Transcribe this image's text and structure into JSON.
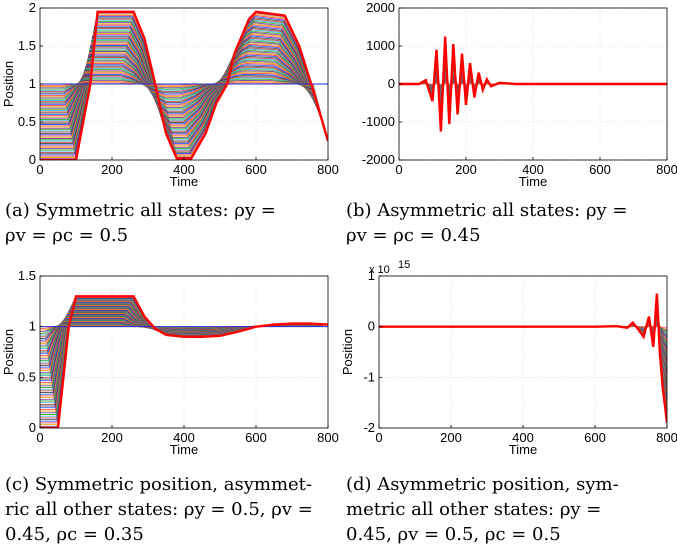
{
  "chart_data": [
    {
      "type": "line",
      "panel": "a",
      "caption_lines": [
        "(a) Symmetric all states: ρy =",
        "ρv = ρc = 0.5"
      ],
      "xlabel": "Time",
      "ylabel": "Position",
      "xlim": [
        0,
        800
      ],
      "ylim": [
        0,
        2
      ],
      "xticks": [
        "0",
        "200",
        "400",
        "600",
        "800"
      ],
      "yticks": [
        "0",
        "0.5",
        "1",
        "1.5",
        "2"
      ],
      "grid": true,
      "series": [
        {
          "color": "#ff0000",
          "x": [
            0,
            100,
            140,
            160,
            260,
            290,
            320,
            350,
            380,
            420,
            460,
            490,
            520,
            540,
            580,
            600,
            680,
            720,
            760,
            800
          ],
          "y": [
            0,
            0,
            1,
            1.95,
            1.95,
            1.6,
            1,
            0.35,
            0.02,
            0.02,
            0.35,
            0.75,
            1,
            1.4,
            1.85,
            1.95,
            1.9,
            1.5,
            0.9,
            0.25
          ]
        }
      ]
    },
    {
      "type": "line",
      "panel": "b",
      "caption_lines": [
        "(b) Asymmetric all states: ρy =",
        "ρv = ρc = 0.45"
      ],
      "xlabel": "Time",
      "ylabel": "",
      "xlim": [
        0,
        800
      ],
      "ylim": [
        -2000,
        2000
      ],
      "xticks": [
        "0",
        "200",
        "400",
        "600",
        "800"
      ],
      "yticks": [
        "-2000",
        "-1000",
        "0",
        "1000",
        "2000"
      ],
      "grid": true,
      "series": [
        {
          "color": "#ff0000",
          "x": [
            0,
            60,
            80,
            100,
            112,
            125,
            138,
            150,
            162,
            175,
            188,
            200,
            212,
            225,
            238,
            250,
            262,
            275,
            300,
            350,
            400,
            800
          ],
          "y": [
            0,
            0,
            100,
            -450,
            900,
            -1250,
            1250,
            -1050,
            1050,
            -800,
            800,
            -550,
            550,
            -350,
            300,
            -150,
            120,
            -60,
            30,
            0,
            0,
            0
          ]
        }
      ]
    },
    {
      "type": "line",
      "panel": "c",
      "caption_lines": [
        "(c) Symmetric position, asymmet-",
        "ric all other states: ρy = 0.5, ρv =",
        "0.45, ρc = 0.35"
      ],
      "xlabel": "Time",
      "ylabel": "Position",
      "xlim": [
        0,
        800
      ],
      "ylim": [
        0,
        1.5
      ],
      "xticks": [
        "0",
        "200",
        "400",
        "600",
        "800"
      ],
      "yticks": [
        "0",
        "0.5",
        "1",
        "1.5"
      ],
      "grid": true,
      "series": [
        {
          "color": "#ff0000",
          "x": [
            0,
            50,
            80,
            100,
            260,
            290,
            320,
            350,
            400,
            450,
            500,
            550,
            600,
            650,
            700,
            750,
            800
          ],
          "y": [
            0,
            0,
            1,
            1.3,
            1.3,
            1.1,
            0.98,
            0.92,
            0.9,
            0.9,
            0.91,
            0.95,
            1.0,
            1.02,
            1.03,
            1.03,
            1.02
          ]
        }
      ]
    },
    {
      "type": "line",
      "panel": "d",
      "caption_lines": [
        "(d) Asymmetric position, sym-",
        "metric all other states: ρy =",
        "0.45, ρv = 0.5, ρc = 0.5"
      ],
      "xlabel": "Time",
      "ylabel": "Position",
      "xlim": [
        0,
        800
      ],
      "ylim": [
        -2,
        1
      ],
      "y_multiplier": "x 10",
      "y_exponent": "15",
      "xticks": [
        "0",
        "200",
        "400",
        "600",
        "800"
      ],
      "yticks": [
        "-2",
        "-1",
        "0",
        "1"
      ],
      "grid": true,
      "series": [
        {
          "color": "#ff0000",
          "x": [
            0,
            600,
            660,
            690,
            705,
            720,
            735,
            750,
            762,
            772,
            780,
            788,
            795,
            800
          ],
          "y": [
            0,
            0,
            0.01,
            -0.02,
            0.08,
            -0.05,
            -0.2,
            0.2,
            -0.4,
            0.65,
            -0.5,
            -1.2,
            -1.6,
            -1.9
          ]
        }
      ]
    }
  ]
}
